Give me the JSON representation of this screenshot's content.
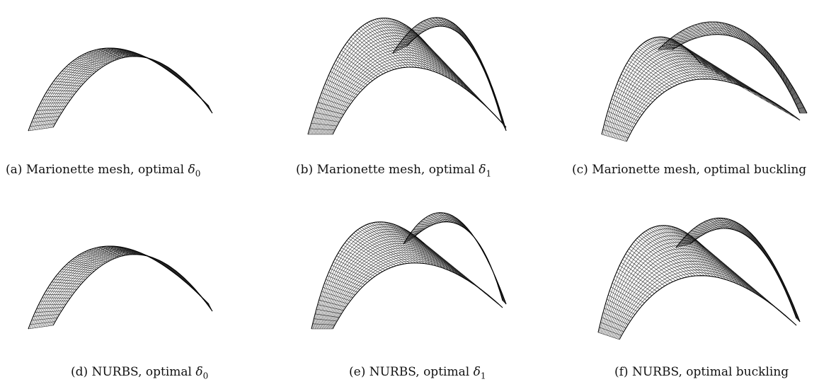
{
  "figure": {
    "panels": [
      {
        "id": "a",
        "tag": "(a)",
        "method": "Marionette mesh, optimal",
        "symbol": "δ",
        "subscript": "0",
        "tail": ""
      },
      {
        "id": "b",
        "tag": "(b)",
        "method": "Marionette mesh, optimal",
        "symbol": "δ",
        "subscript": "1",
        "tail": ""
      },
      {
        "id": "c",
        "tag": "(c)",
        "method": "Marionette mesh, optimal buckling",
        "symbol": "",
        "subscript": "",
        "tail": ""
      },
      {
        "id": "d",
        "tag": "(d)",
        "method": "NURBS, optimal",
        "symbol": "δ",
        "subscript": "0",
        "tail": ""
      },
      {
        "id": "e",
        "tag": "(e)",
        "method": "NURBS, optimal",
        "symbol": "δ",
        "subscript": "1",
        "tail": ""
      },
      {
        "id": "f",
        "tag": "(f)",
        "method": "NURBS, optimal buckling",
        "symbol": "",
        "subscript": "",
        "tail": ""
      }
    ],
    "stroke_color": "#222222"
  }
}
